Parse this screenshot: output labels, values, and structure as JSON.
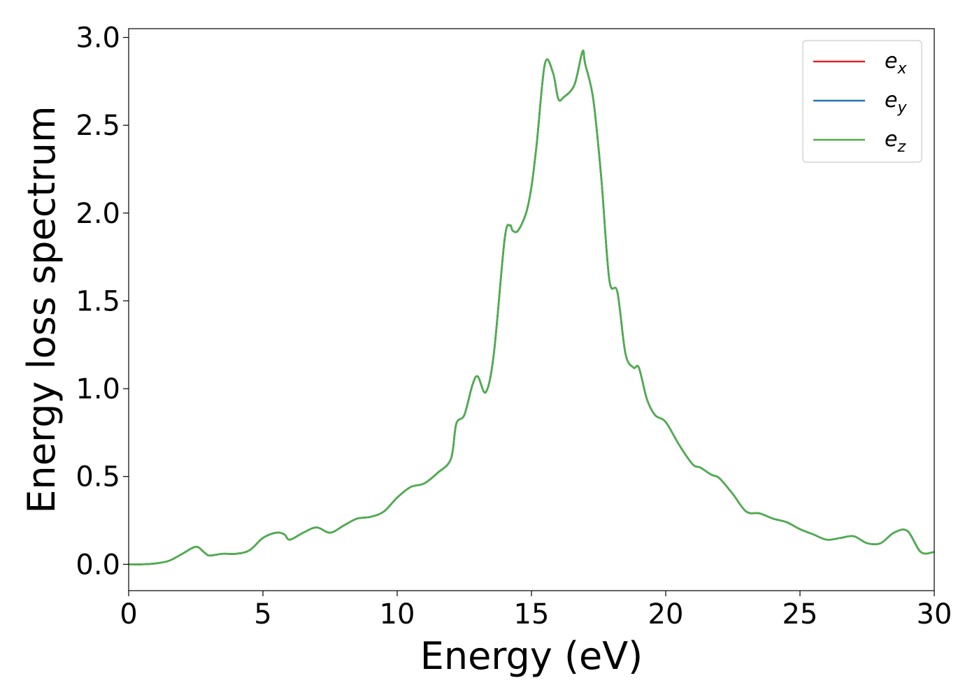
{
  "chart_data": {
    "type": "line",
    "title": "",
    "xlabel": "Energy (eV)",
    "ylabel": "Energy loss spectrum",
    "xlim": [
      0,
      30
    ],
    "ylim": [
      -0.15,
      3.05
    ],
    "xticks": [
      0,
      5,
      10,
      15,
      20,
      25,
      30
    ],
    "xtick_labels": [
      "0",
      "5",
      "10",
      "15",
      "20",
      "25",
      "30"
    ],
    "yticks": [
      0.0,
      0.5,
      1.0,
      1.5,
      2.0,
      2.5,
      3.0
    ],
    "ytick_labels": [
      "0.0",
      "0.5",
      "1.0",
      "1.5",
      "2.0",
      "2.5",
      "3.0"
    ],
    "grid": false,
    "legend_position": "top-right",
    "x": [
      0,
      0.5,
      1.0,
      1.5,
      2.0,
      2.5,
      2.8,
      3.0,
      3.5,
      4.0,
      4.5,
      5.0,
      5.5,
      5.8,
      6.0,
      6.5,
      7.0,
      7.5,
      8.0,
      8.5,
      9.0,
      9.5,
      10.0,
      10.5,
      11.0,
      11.5,
      12.0,
      12.2,
      12.5,
      12.8,
      13.0,
      13.3,
      13.6,
      14.0,
      14.2,
      14.3,
      14.5,
      14.8,
      15.0,
      15.2,
      15.5,
      15.8,
      16.0,
      16.2,
      16.6,
      16.9,
      17.0,
      17.3,
      17.6,
      17.9,
      18.2,
      18.5,
      18.8,
      19.0,
      19.3,
      19.6,
      20.0,
      20.5,
      21.0,
      21.3,
      21.7,
      22.0,
      22.5,
      23.0,
      23.5,
      24.0,
      24.5,
      25.0,
      25.5,
      26.0,
      26.5,
      27.0,
      27.5,
      28.0,
      28.5,
      29.0,
      29.5,
      30.0
    ],
    "series": [
      {
        "name": "x",
        "color": "#d62728",
        "values": [
          0.0,
          0.0,
          0.005,
          0.02,
          0.06,
          0.1,
          0.07,
          0.05,
          0.06,
          0.06,
          0.08,
          0.15,
          0.18,
          0.17,
          0.14,
          0.18,
          0.21,
          0.18,
          0.22,
          0.26,
          0.27,
          0.3,
          0.38,
          0.44,
          0.46,
          0.52,
          0.6,
          0.8,
          0.85,
          1.02,
          1.07,
          0.98,
          1.2,
          1.85,
          1.93,
          1.9,
          1.9,
          2.0,
          2.15,
          2.4,
          2.85,
          2.8,
          2.65,
          2.66,
          2.73,
          2.92,
          2.85,
          2.65,
          2.2,
          1.62,
          1.55,
          1.2,
          1.12,
          1.12,
          0.94,
          0.85,
          0.81,
          0.68,
          0.57,
          0.55,
          0.51,
          0.49,
          0.4,
          0.3,
          0.29,
          0.26,
          0.24,
          0.2,
          0.17,
          0.14,
          0.15,
          0.16,
          0.12,
          0.12,
          0.18,
          0.19,
          0.07,
          0.07
        ]
      },
      {
        "name": "y",
        "color": "#1f77b4",
        "values": [
          0.0,
          0.0,
          0.005,
          0.02,
          0.06,
          0.1,
          0.07,
          0.05,
          0.06,
          0.06,
          0.08,
          0.15,
          0.18,
          0.17,
          0.14,
          0.18,
          0.21,
          0.18,
          0.22,
          0.26,
          0.27,
          0.3,
          0.38,
          0.44,
          0.46,
          0.52,
          0.6,
          0.8,
          0.85,
          1.02,
          1.07,
          0.98,
          1.2,
          1.85,
          1.93,
          1.9,
          1.9,
          2.0,
          2.15,
          2.4,
          2.85,
          2.8,
          2.65,
          2.66,
          2.73,
          2.92,
          2.85,
          2.65,
          2.2,
          1.62,
          1.55,
          1.2,
          1.12,
          1.12,
          0.94,
          0.85,
          0.81,
          0.68,
          0.57,
          0.55,
          0.51,
          0.49,
          0.4,
          0.3,
          0.29,
          0.26,
          0.24,
          0.2,
          0.17,
          0.14,
          0.15,
          0.16,
          0.12,
          0.12,
          0.18,
          0.19,
          0.07,
          0.07
        ]
      },
      {
        "name": "z",
        "color": "#4daf4a",
        "values": [
          0.0,
          0.0,
          0.005,
          0.02,
          0.06,
          0.1,
          0.07,
          0.05,
          0.06,
          0.06,
          0.08,
          0.15,
          0.18,
          0.17,
          0.14,
          0.18,
          0.21,
          0.18,
          0.22,
          0.26,
          0.27,
          0.3,
          0.38,
          0.44,
          0.46,
          0.52,
          0.6,
          0.8,
          0.85,
          1.02,
          1.07,
          0.98,
          1.2,
          1.85,
          1.93,
          1.9,
          1.9,
          2.0,
          2.15,
          2.4,
          2.85,
          2.8,
          2.65,
          2.66,
          2.73,
          2.92,
          2.85,
          2.65,
          2.2,
          1.62,
          1.55,
          1.2,
          1.12,
          1.12,
          0.94,
          0.85,
          0.81,
          0.68,
          0.57,
          0.55,
          0.51,
          0.49,
          0.4,
          0.3,
          0.29,
          0.26,
          0.24,
          0.2,
          0.17,
          0.14,
          0.15,
          0.16,
          0.12,
          0.12,
          0.18,
          0.19,
          0.07,
          0.07
        ]
      }
    ],
    "legend": [
      {
        "base": "e",
        "sub": "x",
        "color": "#d62728"
      },
      {
        "base": "e",
        "sub": "y",
        "color": "#1f77b4"
      },
      {
        "base": "e",
        "sub": "z",
        "color": "#4daf4a"
      }
    ]
  }
}
